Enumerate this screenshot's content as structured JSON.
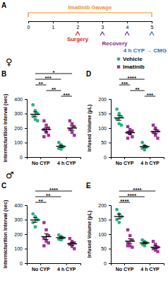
{
  "timeline": {
    "panel_label": "A",
    "title": "Imatinib Gavage",
    "color": "#f0902a",
    "xlim": [
      0,
      5
    ],
    "xticks": [
      0,
      1,
      2,
      3,
      4,
      5
    ],
    "events": [
      {
        "label": "Surgery",
        "days": [
          2
        ],
        "color": "#e0211d"
      },
      {
        "label": "Recovery",
        "days": [
          3,
          4
        ],
        "color": "#7a2c8c"
      },
      {
        "label": "4 h CYP → CMG",
        "days": [
          5
        ],
        "color": "#2f6db5"
      }
    ]
  },
  "sex_labels": [
    "♀",
    "♂"
  ],
  "chart_data": [
    {
      "type": "scatter",
      "panel_label": "B",
      "y_label": "Intermicturition Interval (sec)",
      "categories": [
        "No CYP",
        "4 h CYP"
      ],
      "ylim": [
        0,
        400
      ],
      "yticks": [
        0,
        100,
        200,
        300,
        400
      ],
      "legend": "top-right",
      "series": [
        {
          "name": "Vehicle",
          "color": "#2bb07f",
          "marker": "circle",
          "values": [
            [
              360,
              320,
              300,
              280,
              260,
              250
            ],
            [
              100,
              85,
              70,
              60,
              55
            ]
          ],
          "mean": [
            295,
            74
          ],
          "error": [
            17,
            8
          ]
        },
        {
          "name": "Imatinib",
          "color": "#a0329b",
          "marker": "square",
          "values": [
            [
              250,
              220,
              200,
              190,
              170,
              150,
              140
            ],
            [
              250,
              230,
              210,
              190,
              170,
              150
            ]
          ],
          "mean": [
            189,
            200
          ],
          "error": [
            15,
            15
          ]
        }
      ],
      "significance": [
        {
          "from": [
            "No CYP",
            "Vehicle"
          ],
          "to": [
            "4 h CYP",
            "Imatinib"
          ],
          "label": "*"
        },
        {
          "from": [
            "No CYP",
            "Vehicle"
          ],
          "to": [
            "4 h CYP",
            "Vehicle"
          ],
          "label": "***"
        },
        {
          "from": [
            "No CYP",
            "Vehicle"
          ],
          "to": [
            "No CYP",
            "Imatinib"
          ],
          "label": "**"
        },
        {
          "from": [
            "No CYP",
            "Imatinib"
          ],
          "to": [
            "4 h CYP",
            "Vehicle"
          ],
          "label": "**"
        },
        {
          "from": [
            "4 h CYP",
            "Vehicle"
          ],
          "to": [
            "4 h CYP",
            "Imatinib"
          ],
          "label": "***"
        }
      ]
    },
    {
      "type": "scatter",
      "panel_label": "C",
      "y_label": "Intermicturition Interval (sec)",
      "categories": [
        "No CYP",
        "4 h CYP"
      ],
      "ylim": [
        0,
        400
      ],
      "yticks": [
        0,
        100,
        200,
        300,
        400
      ],
      "series": [
        {
          "name": "Vehicle",
          "color": "#2bb07f",
          "marker": "circle",
          "values": [
            [
              340,
              320,
              300,
              280,
              250
            ],
            [
              195,
              185,
              175,
              165,
              160
            ]
          ],
          "mean": [
            298,
            176
          ],
          "error": [
            16,
            6
          ]
        },
        {
          "name": "Imatinib",
          "color": "#a0329b",
          "marker": "square",
          "values": [
            [
              280,
              230,
              190,
              170,
              150,
              140,
              120
            ],
            [
              170,
              150,
              140,
              130,
              115,
              100
            ]
          ],
          "mean": [
            183,
            134
          ],
          "error": [
            20,
            10
          ]
        }
      ],
      "significance": [
        {
          "from": [
            "No CYP",
            "Vehicle"
          ],
          "to": [
            "4 h CYP",
            "Imatinib"
          ],
          "label": "****"
        },
        {
          "from": [
            "No CYP",
            "Vehicle"
          ],
          "to": [
            "4 h CYP",
            "Vehicle"
          ],
          "label": "**"
        },
        {
          "from": [
            "No CYP",
            "Vehicle"
          ],
          "to": [
            "No CYP",
            "Imatinib"
          ],
          "label": "**"
        }
      ]
    },
    {
      "type": "scatter",
      "panel_label": "D",
      "y_label": "Infused Volume (µL)",
      "categories": [
        "No CYP",
        "4 h CYP"
      ],
      "ylim": [
        0,
        200
      ],
      "yticks": [
        0,
        50,
        100,
        150,
        200
      ],
      "series": [
        {
          "name": "Vehicle",
          "color": "#2bb07f",
          "marker": "circle",
          "values": [
            [
              165,
              150,
              140,
              130,
              115,
              110
            ],
            [
              50,
              40,
              35,
              30,
              25
            ]
          ],
          "mean": [
            135,
            36
          ],
          "error": [
            8.5,
            4
          ]
        },
        {
          "name": "Imatinib",
          "color": "#a0329b",
          "marker": "square",
          "values": [
            [
              105,
              95,
              90,
              85,
              80,
              70,
              65
            ],
            [
              110,
              100,
              90,
              85,
              75,
              65
            ]
          ],
          "mean": [
            84,
            88
          ],
          "error": [
            5,
            7
          ]
        }
      ],
      "significance": [
        {
          "from": [
            "No CYP",
            "Vehicle"
          ],
          "to": [
            "4 h CYP",
            "Vehicle"
          ],
          "label": "****"
        },
        {
          "from": [
            "No CYP",
            "Vehicle"
          ],
          "to": [
            "No CYP",
            "Imatinib"
          ],
          "label": "***"
        },
        {
          "from": [
            "No CYP",
            "Imatinib"
          ],
          "to": [
            "4 h CYP",
            "Vehicle"
          ],
          "label": "**"
        },
        {
          "from": [
            "4 h CYP",
            "Vehicle"
          ],
          "to": [
            "4 h CYP",
            "Imatinib"
          ],
          "label": "***"
        }
      ]
    },
    {
      "type": "scatter",
      "panel_label": "E",
      "y_label": "Infused Volume (µL)",
      "categories": [
        "No CYP",
        "4 h CYP"
      ],
      "ylim": [
        0,
        200
      ],
      "yticks": [
        0,
        50,
        100,
        150,
        200
      ],
      "series": [
        {
          "name": "Vehicle",
          "color": "#2bb07f",
          "marker": "circle",
          "values": [
            [
              185,
              170,
              160,
              150,
              140
            ],
            [
              80,
              75,
              70,
              65,
              60
            ]
          ],
          "mean": [
            161,
            70
          ],
          "error": [
            8,
            3.5
          ]
        },
        {
          "name": "Imatinib",
          "color": "#a0329b",
          "marker": "square",
          "values": [
            [
              115,
              95,
              80,
              70,
              60,
              55,
              60
            ],
            [
              75,
              65,
              55,
              50,
              45,
              40
            ]
          ],
          "mean": [
            76,
            55
          ],
          "error": [
            8,
            5
          ]
        }
      ],
      "significance": [
        {
          "from": [
            "No CYP",
            "Vehicle"
          ],
          "to": [
            "4 h CYP",
            "Imatinib"
          ],
          "label": "****"
        },
        {
          "from": [
            "No CYP",
            "Vehicle"
          ],
          "to": [
            "4 h CYP",
            "Vehicle"
          ],
          "label": "****"
        },
        {
          "from": [
            "No CYP",
            "Vehicle"
          ],
          "to": [
            "No CYP",
            "Imatinib"
          ],
          "label": "****"
        }
      ]
    }
  ]
}
